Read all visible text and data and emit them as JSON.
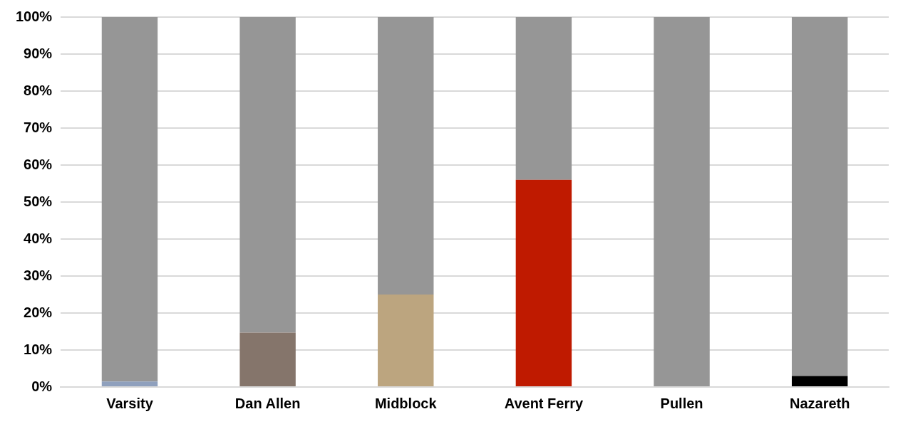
{
  "chart_data": {
    "type": "bar",
    "stacked": true,
    "categories": [
      "Varsity",
      "Dan Allen",
      "Midblock",
      "Avent Ferry",
      "Pullen",
      "Nazareth"
    ],
    "series": [
      {
        "colors": [
          "#8fa0bd",
          "#85756b",
          "#bca57f",
          "#bf1a00",
          "#e0d0d0",
          "#000000"
        ],
        "values": [
          1.5,
          14.7,
          25,
          56,
          0,
          3
        ]
      },
      {
        "color": "#969696",
        "values": [
          98.5,
          85.3,
          75,
          44,
          100,
          97
        ]
      }
    ],
    "ylim": [
      0,
      100
    ],
    "yticks": [
      {
        "value": 0,
        "label": "0%"
      },
      {
        "value": 10,
        "label": "10%"
      },
      {
        "value": 20,
        "label": "20%"
      },
      {
        "value": 30,
        "label": "30%"
      },
      {
        "value": 40,
        "label": "40%"
      },
      {
        "value": 50,
        "label": "50%"
      },
      {
        "value": 60,
        "label": "60%"
      },
      {
        "value": 70,
        "label": "70%"
      },
      {
        "value": 80,
        "label": "80%"
      },
      {
        "value": 90,
        "label": "90%"
      },
      {
        "value": 100,
        "label": "100%"
      }
    ],
    "grid": "y",
    "legend": false
  }
}
